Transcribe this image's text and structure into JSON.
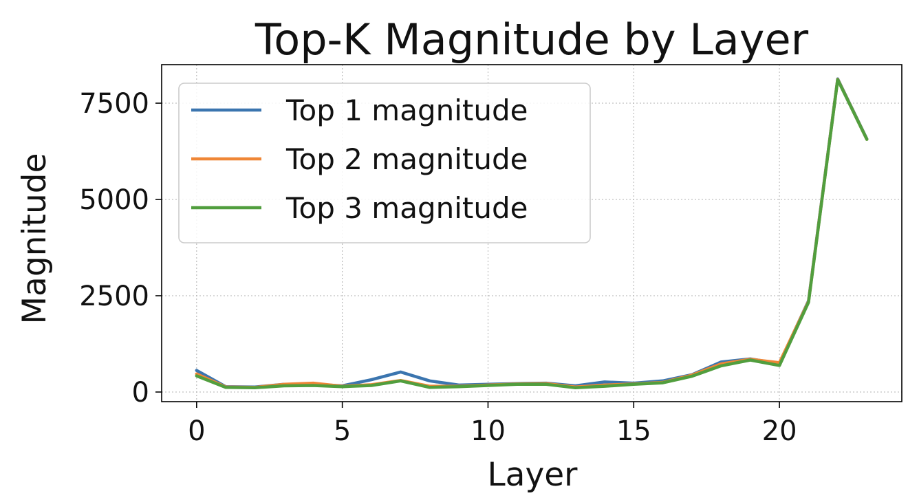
{
  "chart_data": {
    "type": "line",
    "title": "Top-K Magnitude by Layer",
    "xlabel": "Layer",
    "ylabel": "Magnitude",
    "xlim": [
      -1.2,
      24.2
    ],
    "ylim": [
      -250,
      8500
    ],
    "xticks": [
      0,
      5,
      10,
      15,
      20
    ],
    "yticks": [
      0,
      2500,
      5000,
      7500
    ],
    "grid": true,
    "legend_position": "upper-left",
    "x": [
      0,
      1,
      2,
      3,
      4,
      5,
      6,
      7,
      8,
      9,
      10,
      11,
      12,
      13,
      14,
      15,
      16,
      17,
      18,
      19,
      20,
      21,
      22,
      23
    ],
    "series": [
      {
        "name": "Top 1 magnitude",
        "color": "#3b75af",
        "values": [
          560,
          140,
          130,
          200,
          200,
          160,
          320,
          520,
          290,
          180,
          200,
          220,
          230,
          160,
          260,
          230,
          290,
          450,
          780,
          860,
          740,
          2370,
          8130,
          6570
        ]
      },
      {
        "name": "Top 2 magnitude",
        "color": "#ef8636",
        "values": [
          470,
          130,
          120,
          200,
          230,
          150,
          190,
          300,
          150,
          150,
          180,
          210,
          220,
          130,
          180,
          210,
          250,
          440,
          730,
          850,
          760,
          2350,
          8120,
          6560
        ]
      },
      {
        "name": "Top 3 magnitude",
        "color": "#519e3e",
        "values": [
          420,
          120,
          110,
          160,
          170,
          140,
          170,
          290,
          120,
          140,
          170,
          200,
          200,
          110,
          150,
          200,
          240,
          410,
          680,
          830,
          690,
          2330,
          8110,
          6560
        ]
      }
    ]
  }
}
